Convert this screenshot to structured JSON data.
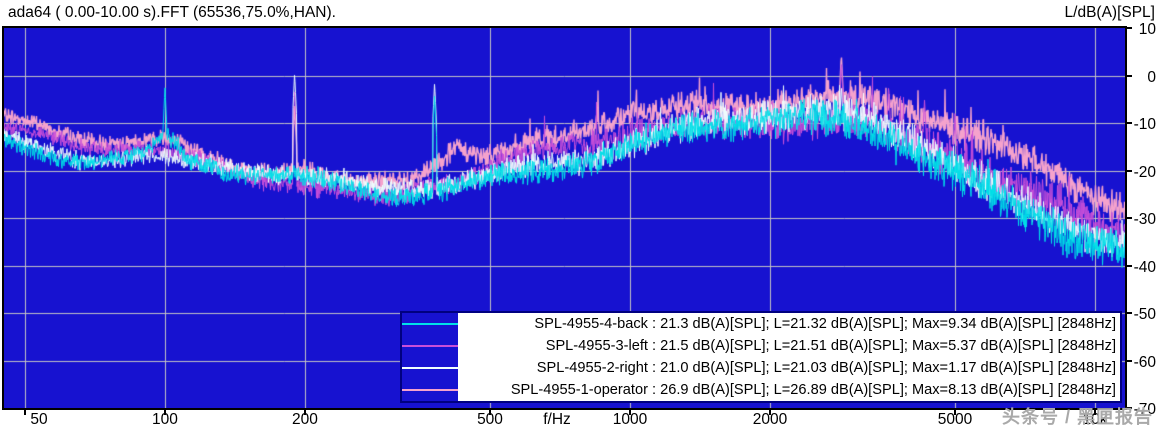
{
  "header": {
    "title": "ada64 ( 0.00-10.00 s).FFT (65536,75.0%,HAN).",
    "y_axis_title": "L/dB(A)[SPL]"
  },
  "watermark": "头条号 / 黑匣报告",
  "colors": {
    "plot_bg": "#1712D0",
    "grid": "#C4C4C4",
    "plot_border": "#000000",
    "legend_border": "#000080",
    "legend_bg": "#FFFFFF",
    "text": "#000000",
    "watermark": "#A9A9A9"
  },
  "axis": {
    "x": {
      "unit_label": "f/Hz",
      "scale": "log",
      "min_hz": 45,
      "max_hz": 11600,
      "ticks": [
        {
          "hz": 50,
          "label": "50"
        },
        {
          "hz": 100,
          "label": "100"
        },
        {
          "hz": 200,
          "label": "200"
        },
        {
          "hz": 500,
          "label": "500"
        },
        {
          "hz": 1000,
          "label": "1000"
        },
        {
          "hz": 2000,
          "label": "2000"
        },
        {
          "hz": 5000,
          "label": "5000"
        },
        {
          "hz": 10000,
          "label": "10k"
        }
      ]
    },
    "y": {
      "unit": "dB(A)[SPL]",
      "min": -70,
      "max": 10,
      "step": 10,
      "ticks": [
        "10",
        "0",
        "-10",
        "-20",
        "-30",
        "-40",
        "-50",
        "-60",
        "-70"
      ]
    }
  },
  "legend": {
    "rows": [
      {
        "series": "SPL-4955-4-back",
        "text": "SPL-4955-4-back : 21.3 dB(A)[SPL]; L=21.32 dB(A)[SPL]; Max=9.34 dB(A)[SPL] [2848Hz]"
      },
      {
        "series": "SPL-4955-3-left",
        "text": "SPL-4955-3-left : 21.5 dB(A)[SPL]; L=21.51 dB(A)[SPL]; Max=5.37 dB(A)[SPL] [2848Hz]"
      },
      {
        "series": "SPL-4955-2-right",
        "text": "SPL-4955-2-right : 21.0 dB(A)[SPL]; L=21.03 dB(A)[SPL]; Max=1.17 dB(A)[SPL] [2848Hz]"
      },
      {
        "series": "SPL-4955-1-operator",
        "text": "SPL-4955-1-operator : 26.9 dB(A)[SPL]; L=26.89 dB(A)[SPL]; Max=8.13 dB(A)[SPL] [2848Hz]"
      }
    ]
  },
  "chart_data": {
    "type": "line",
    "title": "ada64 ( 0.00-10.00 s).FFT (65536,75.0%,HAN).",
    "xlabel": "f/Hz",
    "ylabel": "L/dB(A)[SPL]",
    "x_scale": "log",
    "xlim_hz": [
      45,
      11600
    ],
    "ylim_db": [
      -70,
      10
    ],
    "grid": true,
    "legend_position": "bottom-right",
    "series": [
      {
        "name": "SPL-4955-4-back",
        "color": "#00E0E8",
        "z": 4,
        "seed": 42,
        "overall_dba": 21.3,
        "L_dba": 21.32,
        "max_dba": 9.34,
        "max_hz": 2848,
        "noise_db": [
          [
            45,
            2
          ],
          [
            200,
            2.5
          ],
          [
            600,
            3
          ],
          [
            1500,
            4
          ],
          [
            5000,
            5
          ],
          [
            11600,
            5
          ]
        ],
        "spikes": [
          [
            100,
            -2.5
          ],
          [
            380,
            -4
          ]
        ],
        "spike_prob": 0.006,
        "spike_extra_db": 5,
        "envelope_db": [
          [
            45,
            -13
          ],
          [
            55,
            -15
          ],
          [
            70,
            -17
          ],
          [
            90,
            -17
          ],
          [
            100,
            -13
          ],
          [
            115,
            -19
          ],
          [
            140,
            -21
          ],
          [
            180,
            -22
          ],
          [
            230,
            -24
          ],
          [
            290,
            -25.5
          ],
          [
            360,
            -24
          ],
          [
            450,
            -22
          ],
          [
            600,
            -19.5
          ],
          [
            800,
            -17
          ],
          [
            1000,
            -14.5
          ],
          [
            1300,
            -12.5
          ],
          [
            1700,
            -11
          ],
          [
            2100,
            -10
          ],
          [
            2500,
            -10
          ],
          [
            2900,
            -11
          ],
          [
            3300,
            -12
          ],
          [
            3800,
            -14
          ],
          [
            4500,
            -17
          ],
          [
            5200,
            -20
          ],
          [
            6000,
            -24
          ],
          [
            7000,
            -28
          ],
          [
            8500,
            -32
          ],
          [
            10000,
            -34.5
          ],
          [
            11600,
            -36.5
          ]
        ]
      },
      {
        "name": "SPL-4955-3-left",
        "color": "#C94FD9",
        "z": 2,
        "seed": 13,
        "overall_dba": 21.5,
        "L_dba": 21.51,
        "max_dba": 5.37,
        "max_hz": 2848,
        "noise_db": [
          [
            45,
            2
          ],
          [
            200,
            2.5
          ],
          [
            600,
            3
          ],
          [
            1500,
            4
          ],
          [
            5000,
            5
          ],
          [
            11600,
            5
          ]
        ],
        "spikes": [
          [
            190,
            -3
          ],
          [
            2848,
            3
          ],
          [
            3600,
            -2
          ],
          [
            4300,
            -5
          ],
          [
            5000,
            -8
          ]
        ],
        "spike_prob": 0.02,
        "spike_extra_db": 8,
        "envelope_db": [
          [
            45,
            -12
          ],
          [
            55,
            -14
          ],
          [
            70,
            -16
          ],
          [
            90,
            -16
          ],
          [
            110,
            -18
          ],
          [
            140,
            -20
          ],
          [
            180,
            -21
          ],
          [
            230,
            -23
          ],
          [
            290,
            -25
          ],
          [
            360,
            -23
          ],
          [
            450,
            -21
          ],
          [
            600,
            -18
          ],
          [
            800,
            -15.5
          ],
          [
            1000,
            -13
          ],
          [
            1300,
            -11
          ],
          [
            1700,
            -9.5
          ],
          [
            2100,
            -8.5
          ],
          [
            2500,
            -8
          ],
          [
            2900,
            -9
          ],
          [
            3300,
            -10
          ],
          [
            3800,
            -12
          ],
          [
            4500,
            -15
          ],
          [
            5200,
            -18
          ],
          [
            6000,
            -22
          ],
          [
            7000,
            -26
          ],
          [
            8500,
            -29
          ],
          [
            10000,
            -32
          ],
          [
            11600,
            -34
          ]
        ]
      },
      {
        "name": "SPL-4955-2-right",
        "color": "#F0FFFF",
        "z": 3,
        "seed": 29,
        "overall_dba": 21.0,
        "L_dba": 21.03,
        "max_dba": 1.17,
        "max_hz": 2848,
        "noise_db": [
          [
            45,
            2
          ],
          [
            200,
            2.5
          ],
          [
            600,
            3
          ],
          [
            1500,
            4
          ],
          [
            5000,
            4.5
          ],
          [
            11600,
            4.5
          ]
        ],
        "spikes": [
          [
            190,
            0.5
          ],
          [
            380,
            -1.5
          ],
          [
            2848,
            -2
          ]
        ],
        "spike_prob": 0.008,
        "spike_extra_db": 5,
        "envelope_db": [
          [
            45,
            -12.5
          ],
          [
            55,
            -14.5
          ],
          [
            70,
            -16.5
          ],
          [
            90,
            -16.5
          ],
          [
            110,
            -18.5
          ],
          [
            140,
            -20
          ],
          [
            180,
            -21.5
          ],
          [
            230,
            -23.5
          ],
          [
            290,
            -25
          ],
          [
            360,
            -23
          ],
          [
            450,
            -21.5
          ],
          [
            600,
            -18.5
          ],
          [
            800,
            -16
          ],
          [
            1000,
            -13.5
          ],
          [
            1300,
            -11.5
          ],
          [
            1700,
            -10
          ],
          [
            2100,
            -9
          ],
          [
            2500,
            -8.5
          ],
          [
            2900,
            -9.5
          ],
          [
            3300,
            -10.5
          ],
          [
            3800,
            -12.5
          ],
          [
            4500,
            -15.5
          ],
          [
            5200,
            -18.5
          ],
          [
            6000,
            -22.5
          ],
          [
            7000,
            -26.5
          ],
          [
            8500,
            -30
          ],
          [
            10000,
            -32.5
          ],
          [
            11600,
            -34.5
          ]
        ]
      },
      {
        "name": "SPL-4955-1-operator",
        "color": "#F5A2CC",
        "z": 1,
        "seed": 7,
        "overall_dba": 26.9,
        "L_dba": 26.89,
        "max_dba": 8.13,
        "max_hz": 2848,
        "noise_db": [
          [
            45,
            2
          ],
          [
            200,
            2.5
          ],
          [
            600,
            3
          ],
          [
            1500,
            3.5
          ],
          [
            5000,
            4
          ],
          [
            11600,
            4
          ]
        ],
        "spikes": [
          [
            2848,
            4.5
          ],
          [
            190,
            -6
          ]
        ],
        "spike_prob": 0.012,
        "spike_extra_db": 6,
        "envelope_db": [
          [
            45,
            -10
          ],
          [
            55,
            -12
          ],
          [
            65,
            -14
          ],
          [
            80,
            -15
          ],
          [
            100,
            -14
          ],
          [
            120,
            -17
          ],
          [
            150,
            -19
          ],
          [
            190,
            -18
          ],
          [
            240,
            -22
          ],
          [
            300,
            -22
          ],
          [
            360,
            -20
          ],
          [
            420,
            -15
          ],
          [
            480,
            -18
          ],
          [
            560,
            -17
          ],
          [
            700,
            -14
          ],
          [
            850,
            -11
          ],
          [
            1000,
            -8.5
          ],
          [
            1300,
            -7
          ],
          [
            1700,
            -5.5
          ],
          [
            2100,
            -4
          ],
          [
            2500,
            -3.5
          ],
          [
            2900,
            -4
          ],
          [
            3300,
            -5
          ],
          [
            3800,
            -6.5
          ],
          [
            4500,
            -9
          ],
          [
            5200,
            -12
          ],
          [
            6000,
            -15
          ],
          [
            7000,
            -19
          ],
          [
            8500,
            -23
          ],
          [
            10000,
            -26
          ],
          [
            11600,
            -28
          ]
        ]
      }
    ]
  }
}
